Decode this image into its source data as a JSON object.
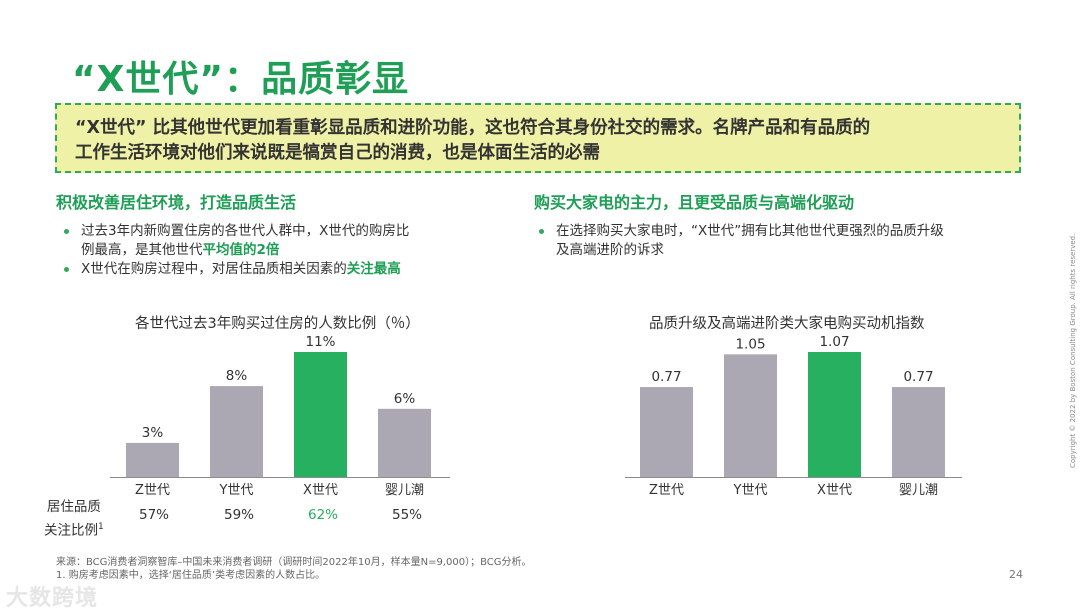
{
  "slide": {
    "title": "“X世代”：品质彰显",
    "callout_lines": [
      "“X世代” 比其他世代更加看重彰显品质和进阶功能，这也符合其身份社交的需求。名牌产品和有品质的",
      "工作生活环境对他们来说既是犒赏自己的消费，也是体面生活的必需"
    ],
    "left": {
      "subhead": "积极改善居住环境，打造品质生活",
      "bullet1_line1": "过去3年内新购置住房的各世代人群中，X世代的购房比",
      "bullet1_line2_plain": "例最高，是其他世代",
      "bullet1_line2_highlight": "平均值的2倍",
      "bullet2_plain": "X世代在购房过程中，对居住品质相关因素的",
      "bullet2_highlight": "关注最高"
    },
    "right": {
      "subhead": "购买大家电的主力，且更受品质与高端化驱动",
      "bullet1_line1": "在选择购买大家电时，“X世代”拥有比其他世代更强烈的品质升级",
      "bullet1_line2": "及高端进阶的诉求"
    },
    "row_label_line1": "居住品质",
    "row_label_line2": "关注比例",
    "row_label_footnote": "1",
    "row_values": [
      "57%",
      "59%",
      "62%",
      "55%"
    ],
    "source_line1": "来源：BCG消费者洞察智库–中国未来消费者调研（调研时间2022年10月，样本量N=9,000）；BCG分析。",
    "source_line2": "1. 购房考虑因素中，选择‘居住品质’类考虑因素的人数占比。",
    "page_number": "24",
    "copyright": "Copyright © 2022 by Boston Consulting Group. All rights reserved.",
    "watermark": "大数跨境"
  },
  "colors": {
    "accent_green": "#1f9e56",
    "highlight_bar": "#27b060",
    "gray_bar": "#aba7b3",
    "callout_bg": "#eef1a6"
  },
  "chart_data": [
    {
      "type": "bar",
      "title": "各世代过去3年购买过住房的人数比例（％）",
      "categories": [
        "Z世代",
        "Y世代",
        "X世代",
        "婴儿潮"
      ],
      "values": [
        3,
        8,
        11,
        6
      ],
      "value_labels": [
        "3%",
        "8%",
        "11%",
        "6%"
      ],
      "highlight_index": 2,
      "ylim": [
        0,
        11
      ],
      "grid": false,
      "legend": "none"
    },
    {
      "type": "bar",
      "title": "品质升级及高端进阶类大家电购买动机指数",
      "categories": [
        "Z世代",
        "Y世代",
        "X世代",
        "婴儿潮"
      ],
      "values": [
        0.77,
        1.05,
        1.07,
        0.77
      ],
      "value_labels": [
        "0.77",
        "1.05",
        "1.07",
        "0.77"
      ],
      "highlight_index": 2,
      "ylim": [
        0,
        1.07
      ],
      "grid": false,
      "legend": "none"
    }
  ]
}
